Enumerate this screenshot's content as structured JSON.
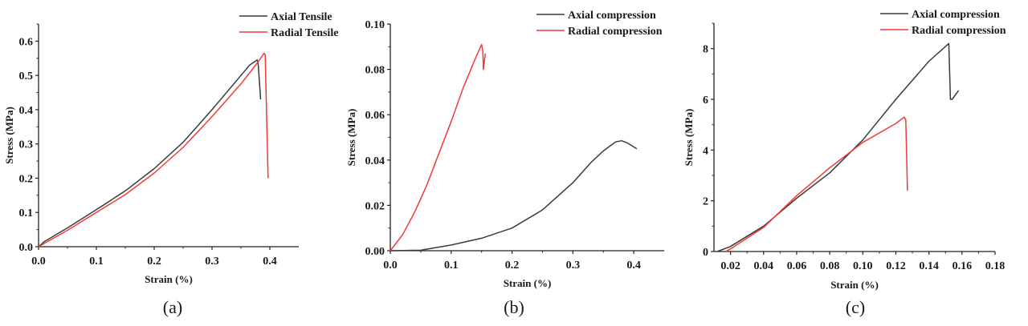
{
  "colors": {
    "axial": "#3a3a3a",
    "radial": "#f03a3a",
    "axis": "#222222"
  },
  "chart_data": [
    {
      "type": "line",
      "panel_label": "(a)",
      "panel_letter": "a",
      "xlabel": "Strain (%)",
      "ylabel": "Stress (MPa)",
      "xlim": [
        0,
        0.45
      ],
      "ylim": [
        0,
        0.65
      ],
      "xticks": [
        "0.0",
        "0.1",
        "0.2",
        "0.3",
        "0.4"
      ],
      "xtick_values": [
        0,
        0.1,
        0.2,
        0.3,
        0.4
      ],
      "yticks": [
        "0.0",
        "0.1",
        "0.2",
        "0.3",
        "0.4",
        "0.5",
        "0.6"
      ],
      "ytick_values": [
        0,
        0.1,
        0.2,
        0.3,
        0.4,
        0.5,
        0.6
      ],
      "legend_position": "top-right",
      "series": [
        {
          "name": "Axial Tensile",
          "color_key": "axial",
          "x": [
            0,
            0.01,
            0.05,
            0.1,
            0.15,
            0.2,
            0.25,
            0.3,
            0.35,
            0.365,
            0.378,
            0.38,
            0.384
          ],
          "y": [
            0,
            0.015,
            0.055,
            0.108,
            0.163,
            0.228,
            0.305,
            0.4,
            0.5,
            0.53,
            0.545,
            0.53,
            0.43
          ]
        },
        {
          "name": "Radial Tensile",
          "color_key": "radial",
          "x": [
            0,
            0.05,
            0.1,
            0.15,
            0.2,
            0.25,
            0.3,
            0.35,
            0.38,
            0.39,
            0.392,
            0.397
          ],
          "y": [
            0,
            0.048,
            0.1,
            0.152,
            0.215,
            0.29,
            0.38,
            0.475,
            0.54,
            0.565,
            0.56,
            0.2
          ]
        }
      ]
    },
    {
      "type": "line",
      "panel_label": "(b)",
      "panel_letter": "b",
      "xlabel": "Strain (%)",
      "ylabel": "Stress (MPa)",
      "xlim": [
        0,
        0.45
      ],
      "ylim": [
        0,
        0.1
      ],
      "xticks": [
        "0.0",
        "0.1",
        "0.2",
        "0.3",
        "0.4"
      ],
      "xtick_values": [
        0,
        0.1,
        0.2,
        0.3,
        0.4
      ],
      "yticks": [
        "0.00",
        "0.02",
        "0.04",
        "0.06",
        "0.08",
        "0.10"
      ],
      "ytick_values": [
        0,
        0.02,
        0.04,
        0.06,
        0.08,
        0.1
      ],
      "legend_position": "top-right",
      "series": [
        {
          "name": "Axial compression",
          "color_key": "axial",
          "x": [
            0,
            0.05,
            0.1,
            0.15,
            0.2,
            0.25,
            0.3,
            0.33,
            0.35,
            0.37,
            0.38,
            0.39,
            0.405
          ],
          "y": [
            0,
            0.0002,
            0.0025,
            0.0055,
            0.01,
            0.018,
            0.03,
            0.039,
            0.044,
            0.048,
            0.0485,
            0.0475,
            0.045
          ]
        },
        {
          "name": "Radial compression",
          "color_key": "radial",
          "x": [
            0,
            0.02,
            0.04,
            0.06,
            0.08,
            0.1,
            0.12,
            0.14,
            0.15,
            0.152,
            0.153,
            0.156
          ],
          "y": [
            0,
            0.007,
            0.017,
            0.029,
            0.043,
            0.057,
            0.072,
            0.085,
            0.091,
            0.088,
            0.08,
            0.087
          ]
        }
      ]
    },
    {
      "type": "line",
      "panel_label": "(c)",
      "panel_letter": "c",
      "xlabel": "Strain (%)",
      "ylabel": "Stress (MPa)",
      "xlim": [
        0.01,
        0.18
      ],
      "ylim": [
        0,
        9
      ],
      "xticks": [
        "0.02",
        "0.04",
        "0.06",
        "0.08",
        "0.10",
        "0.12",
        "0.14",
        "0.16",
        "0.18"
      ],
      "xtick_values": [
        0.02,
        0.04,
        0.06,
        0.08,
        0.1,
        0.12,
        0.14,
        0.16,
        0.18
      ],
      "yticks": [
        "0",
        "2",
        "4",
        "6",
        "8"
      ],
      "ytick_values": [
        0,
        2,
        4,
        6,
        8
      ],
      "legend_position": "top-right",
      "series": [
        {
          "name": "Axial compression",
          "color_key": "axial",
          "x": [
            0.012,
            0.02,
            0.04,
            0.06,
            0.08,
            0.1,
            0.12,
            0.14,
            0.152,
            0.153,
            0.154,
            0.158
          ],
          "y": [
            0,
            0.2,
            1.0,
            2.1,
            3.1,
            4.4,
            6.0,
            7.5,
            8.2,
            6.0,
            6.0,
            6.35
          ]
        },
        {
          "name": "Radial compression",
          "color_key": "radial",
          "x": [
            0.017,
            0.02,
            0.04,
            0.06,
            0.08,
            0.1,
            0.12,
            0.125,
            0.126,
            0.127
          ],
          "y": [
            0,
            0.1,
            0.95,
            2.2,
            3.3,
            4.3,
            5.05,
            5.3,
            5.2,
            2.4
          ]
        }
      ]
    }
  ]
}
